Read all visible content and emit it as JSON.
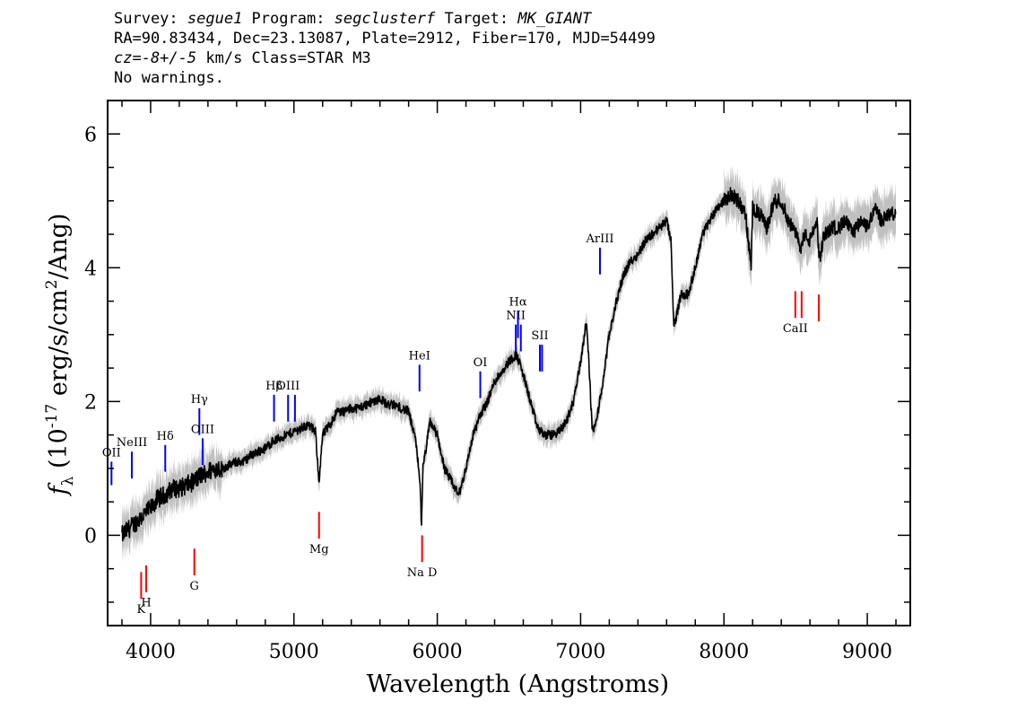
{
  "header": {
    "line1_prefix": "Survey: ",
    "survey": "segue1",
    "program_prefix": " Program: ",
    "program": "segclusterf",
    "target_prefix": " Target: ",
    "target": "MK_GIANT",
    "line2": "RA=90.83434, Dec=23.13087, Plate=2912, Fiber=170, MJD=54499",
    "line3_cz": "cz=-8+/-5",
    "line3_rest": " km/s Class=STAR M3",
    "line4": "No warnings."
  },
  "chart_data": {
    "type": "line",
    "xlabel": "Wavelength (Angstroms)",
    "ylabel": "f_λ (10^-17 erg/s/cm^2/Ang)",
    "xlim": [
      3700,
      9300
    ],
    "ylim": [
      -1.35,
      6.5
    ],
    "x_ticks": [
      4000,
      5000,
      6000,
      7000,
      8000,
      9000
    ],
    "y_ticks": [
      0,
      2,
      4,
      6
    ],
    "grid": false,
    "series": [
      {
        "color": "#000000",
        "error_color": "#c0c0c0",
        "x": [
          3800,
          3850,
          3900,
          3950,
          4000,
          4050,
          4100,
          4150,
          4200,
          4250,
          4300,
          4350,
          4400,
          4450,
          4500,
          4550,
          4600,
          4650,
          4700,
          4750,
          4800,
          4850,
          4900,
          4950,
          5000,
          5050,
          5100,
          5150,
          5175,
          5200,
          5250,
          5300,
          5350,
          5400,
          5450,
          5500,
          5550,
          5600,
          5650,
          5700,
          5750,
          5800,
          5850,
          5880,
          5890,
          5900,
          5950,
          6000,
          6050,
          6100,
          6150,
          6200,
          6250,
          6300,
          6350,
          6400,
          6450,
          6500,
          6550,
          6570,
          6600,
          6650,
          6700,
          6750,
          6800,
          6850,
          6900,
          6950,
          7000,
          7040,
          7060,
          7080,
          7100,
          7150,
          7200,
          7250,
          7300,
          7350,
          7400,
          7450,
          7500,
          7550,
          7600,
          7630,
          7650,
          7700,
          7750,
          7800,
          7850,
          7900,
          7950,
          8000,
          8050,
          8100,
          8150,
          8190,
          8200,
          8250,
          8300,
          8350,
          8400,
          8450,
          8500,
          8540,
          8560,
          8600,
          8650,
          8665,
          8700,
          8750,
          8800,
          8850,
          8900,
          8950,
          9000,
          9050,
          9100,
          9150,
          9200
        ],
        "y": [
          0.0,
          0.1,
          0.2,
          0.3,
          0.4,
          0.55,
          0.6,
          0.7,
          0.7,
          0.75,
          0.8,
          0.9,
          0.95,
          1.0,
          1.0,
          1.05,
          1.1,
          1.1,
          1.2,
          1.25,
          1.3,
          1.4,
          1.45,
          1.5,
          1.55,
          1.6,
          1.65,
          1.55,
          0.8,
          1.5,
          1.65,
          1.85,
          1.85,
          1.9,
          1.9,
          1.95,
          2.0,
          2.05,
          1.95,
          1.95,
          1.9,
          1.85,
          1.4,
          0.8,
          0.1,
          1.0,
          1.7,
          1.5,
          1.0,
          0.8,
          0.6,
          1.0,
          1.5,
          1.8,
          2.0,
          2.3,
          2.45,
          2.6,
          2.7,
          2.6,
          2.4,
          2.0,
          1.6,
          1.5,
          1.5,
          1.55,
          1.7,
          2.0,
          2.6,
          3.2,
          2.5,
          1.6,
          1.6,
          2.2,
          3.0,
          3.5,
          3.9,
          4.1,
          4.2,
          4.4,
          4.5,
          4.6,
          4.7,
          4.4,
          3.1,
          3.6,
          3.6,
          4.0,
          4.5,
          4.7,
          4.9,
          5.0,
          5.1,
          5.0,
          4.8,
          4.0,
          4.9,
          4.8,
          4.6,
          5.0,
          5.0,
          4.7,
          4.5,
          4.3,
          4.5,
          4.4,
          4.7,
          4.1,
          4.5,
          4.6,
          4.6,
          4.7,
          4.5,
          4.7,
          4.6,
          4.9,
          4.7,
          4.8,
          4.8
        ]
      }
    ],
    "emission_lines": [
      {
        "label": "OII",
        "wave": 3727,
        "y0": 0.75,
        "y1": 1.1
      },
      {
        "label": "NeIII",
        "wave": 3869,
        "y0": 0.85,
        "y1": 1.25
      },
      {
        "label": "Hδ",
        "wave": 4102,
        "y0": 0.95,
        "y1": 1.35
      },
      {
        "label": "Hγ",
        "wave": 4340,
        "y0": 1.5,
        "y1": 1.9
      },
      {
        "label": "OIII",
        "wave": 4363,
        "y0": 1.05,
        "y1": 1.45
      },
      {
        "label": "Hβ",
        "wave": 4861,
        "y0": 1.7,
        "y1": 2.1
      },
      {
        "label": "OIII",
        "wave": 4959,
        "y0": 1.7,
        "y1": 2.1
      },
      {
        "label": "OIII",
        "wave": 5007,
        "y0": 1.7,
        "y1": 2.1
      },
      {
        "label": "HeI",
        "wave": 5876,
        "y0": 2.15,
        "y1": 2.55
      },
      {
        "label": "OI",
        "wave": 6300,
        "y0": 2.05,
        "y1": 2.45
      },
      {
        "label": "NII",
        "wave": 6548,
        "y0": 2.75,
        "y1": 3.15
      },
      {
        "label": "Hα",
        "wave": 6563,
        "y0": 2.95,
        "y1": 3.35
      },
      {
        "label": "NII",
        "wave": 6583,
        "y0": 2.75,
        "y1": 3.15
      },
      {
        "label": "SII",
        "wave": 6716,
        "y0": 2.45,
        "y1": 2.85
      },
      {
        "label": "SII",
        "wave": 6731,
        "y0": 2.45,
        "y1": 2.85
      },
      {
        "label": "ArIII",
        "wave": 7135,
        "y0": 3.9,
        "y1": 4.3
      }
    ],
    "absorption_lines": [
      {
        "label": "K",
        "wave": 3934,
        "y0": -0.55,
        "y1": -0.95
      },
      {
        "label": "H",
        "wave": 3969,
        "y0": -0.45,
        "y1": -0.85
      },
      {
        "label": "G",
        "wave": 4305,
        "y0": -0.2,
        "y1": -0.6
      },
      {
        "label": "Mg",
        "wave": 5175,
        "y0": 0.35,
        "y1": -0.05
      },
      {
        "label": "Na D",
        "wave": 5894,
        "y0": 0.0,
        "y1": -0.4
      },
      {
        "label": "CaII",
        "wave": 8498,
        "y0": 3.65,
        "y1": 3.25
      },
      {
        "label": "CaII",
        "wave": 8542,
        "y0": 3.65,
        "y1": 3.25
      },
      {
        "label": "CaII",
        "wave": 8662,
        "y0": 3.6,
        "y1": 3.2
      }
    ],
    "emission_color": "#0000ff",
    "absorption_color": "#ff0000"
  }
}
